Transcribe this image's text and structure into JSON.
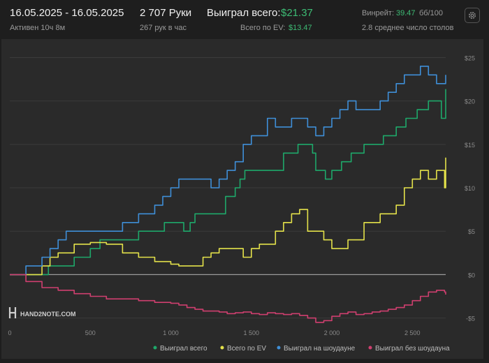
{
  "header": {
    "date_range": "16.05.2025 - 16.05.2025",
    "active": "Активен 10ч 8м",
    "hands": "2 707 Руки",
    "hands_per_hour": "267 рук в час",
    "won_total_label": "Выиграл всего:",
    "won_total_value": "$21.37",
    "ev_total_label": "Всего по EV:",
    "ev_total_value": "$13.47",
    "winrate_label": "Винрейт:",
    "winrate_value": "39.47",
    "winrate_unit": "бб/100",
    "tables": "2.8 среднее число столов"
  },
  "logo": {
    "text": "HAND2NOTE.COM"
  },
  "colors": {
    "won_total": "#1ea86a",
    "ev": "#e4e24a",
    "showdown": "#3f8fd8",
    "no_showdown": "#cf3f6f",
    "zero_line": "#9a9a9a"
  },
  "chart_data": {
    "type": "line",
    "xlim": [
      0,
      2707
    ],
    "ylim": [
      -6,
      26
    ],
    "x_ticks": [
      {
        "value": 0,
        "label": "0"
      },
      {
        "value": 500,
        "label": "500"
      },
      {
        "value": 1000,
        "label": "1 000"
      },
      {
        "value": 1500,
        "label": "1 500"
      },
      {
        "value": 2000,
        "label": "2 000"
      },
      {
        "value": 2500,
        "label": "2 500"
      }
    ],
    "y_ticks": [
      {
        "value": 25,
        "label": "$25"
      },
      {
        "value": 20,
        "label": "$20"
      },
      {
        "value": 15,
        "label": "$15"
      },
      {
        "value": 10,
        "label": "$10"
      },
      {
        "value": 5,
        "label": "$5"
      },
      {
        "value": 0,
        "label": "$0"
      },
      {
        "value": -5,
        "label": "-$5"
      }
    ],
    "legend_position": "bottom-right",
    "series": [
      {
        "name": "Выиграл всего",
        "color": "#1ea86a",
        "x": [
          0,
          100,
          200,
          240,
          300,
          400,
          500,
          560,
          650,
          720,
          800,
          900,
          960,
          1020,
          1080,
          1120,
          1150,
          1280,
          1340,
          1400,
          1430,
          1460,
          1540,
          1600,
          1700,
          1790,
          1880,
          1900,
          1960,
          2000,
          2060,
          2120,
          2200,
          2280,
          2320,
          2400,
          2460,
          2530,
          2560,
          2600,
          2680,
          2707
        ],
        "y": [
          0,
          0,
          0,
          1,
          1,
          2,
          3,
          4,
          4,
          4,
          5,
          5,
          6,
          6,
          5,
          6,
          7,
          7,
          9,
          10,
          11,
          12,
          12,
          12,
          14,
          15,
          14,
          12,
          11,
          12,
          13,
          14,
          15,
          15,
          16,
          17,
          18,
          19,
          19,
          20,
          18,
          21.37
        ]
      },
      {
        "name": "Всего по EV",
        "color": "#e4e24a",
        "x": [
          0,
          200,
          250,
          300,
          400,
          500,
          600,
          700,
          800,
          900,
          1000,
          1050,
          1100,
          1150,
          1200,
          1250,
          1300,
          1350,
          1400,
          1450,
          1500,
          1550,
          1600,
          1650,
          1700,
          1750,
          1800,
          1850,
          1900,
          1950,
          2000,
          2100,
          2200,
          2300,
          2400,
          2450,
          2500,
          2550,
          2600,
          2650,
          2700,
          2707
        ],
        "y": [
          0,
          1,
          2,
          2.5,
          3.5,
          3.7,
          3.5,
          2.5,
          2,
          1.5,
          1.2,
          1,
          1,
          1,
          2,
          2.5,
          3,
          3,
          3,
          2,
          3,
          3.5,
          3.5,
          5,
          6,
          7,
          7.5,
          5,
          5,
          4,
          3,
          4,
          6,
          7,
          8,
          10,
          11,
          12,
          11,
          12,
          10,
          13.47
        ]
      },
      {
        "name": "Выиграл на шоудауне",
        "color": "#3f8fd8",
        "x": [
          0,
          100,
          200,
          250,
          300,
          350,
          400,
          450,
          500,
          600,
          700,
          800,
          850,
          900,
          950,
          1000,
          1050,
          1100,
          1150,
          1200,
          1250,
          1300,
          1350,
          1400,
          1450,
          1500,
          1550,
          1600,
          1650,
          1700,
          1750,
          1800,
          1850,
          1900,
          1950,
          2000,
          2050,
          2100,
          2150,
          2200,
          2250,
          2300,
          2350,
          2400,
          2450,
          2500,
          2550,
          2600,
          2650,
          2707
        ],
        "y": [
          0,
          1,
          2,
          3,
          4,
          5,
          5,
          5,
          5,
          5,
          6,
          7,
          7,
          8,
          9,
          10,
          11,
          11,
          11,
          11,
          10,
          11,
          12,
          13,
          15,
          16,
          16,
          18,
          17,
          17,
          18,
          18,
          17,
          16,
          17,
          18,
          19,
          20,
          19,
          19,
          19,
          20,
          21,
          22,
          23,
          23,
          24,
          23,
          22,
          23
        ]
      },
      {
        "name": "Выиграл без шоудауна",
        "color": "#cf3f6f",
        "x": [
          0,
          100,
          200,
          300,
          400,
          500,
          600,
          700,
          800,
          900,
          1000,
          1050,
          1100,
          1150,
          1200,
          1250,
          1300,
          1350,
          1400,
          1450,
          1500,
          1550,
          1600,
          1650,
          1700,
          1750,
          1800,
          1850,
          1900,
          1950,
          2000,
          2050,
          2100,
          2150,
          2200,
          2250,
          2300,
          2350,
          2400,
          2450,
          2500,
          2550,
          2600,
          2650,
          2700,
          2707
        ],
        "y": [
          0,
          -0.8,
          -1.5,
          -1.8,
          -2.2,
          -2.5,
          -2.8,
          -2.8,
          -3,
          -3.2,
          -3.3,
          -3.5,
          -3.8,
          -4,
          -4.2,
          -4.2,
          -4.3,
          -4.5,
          -4.4,
          -4.3,
          -4.5,
          -4.6,
          -4.4,
          -4.5,
          -4.6,
          -4.5,
          -4.7,
          -5,
          -5.5,
          -5.3,
          -4.8,
          -4.5,
          -4.3,
          -4.6,
          -4.5,
          -4.3,
          -4.2,
          -4,
          -3.8,
          -3.5,
          -3,
          -2.5,
          -2,
          -1.8,
          -2,
          -2.3
        ]
      }
    ]
  }
}
